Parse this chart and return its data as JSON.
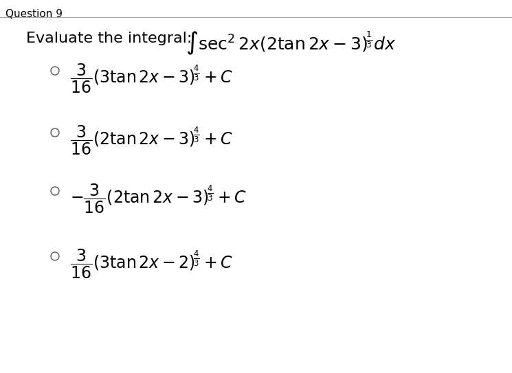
{
  "title": "Question 9",
  "question_text": "Evaluate the integral:",
  "integral_expr": "$\\int \\sec^2 2x \\left(2 \\tan 2x - 3\\right)^{\\frac{1}{3}} dx$",
  "options": [
    "$\\dfrac{3}{16}\\left(3 \\tan 2x - 3\\right)^{\\frac{4}{3}} + C$",
    "$\\dfrac{3}{16}\\left(2 \\tan 2x - 3\\right)^{\\frac{4}{3}} + C$",
    "$-\\dfrac{3}{16}\\left(2 \\tan 2x - 3\\right)^{\\frac{4}{3}} + C$",
    "$\\dfrac{3}{16}\\left(3 \\tan 2x - 2\\right)^{\\frac{4}{3}} + C$"
  ],
  "background_color": "#ffffff",
  "text_color": "#000000",
  "title_fontsize": 11,
  "question_fontsize": 16,
  "option_fontsize": 17
}
